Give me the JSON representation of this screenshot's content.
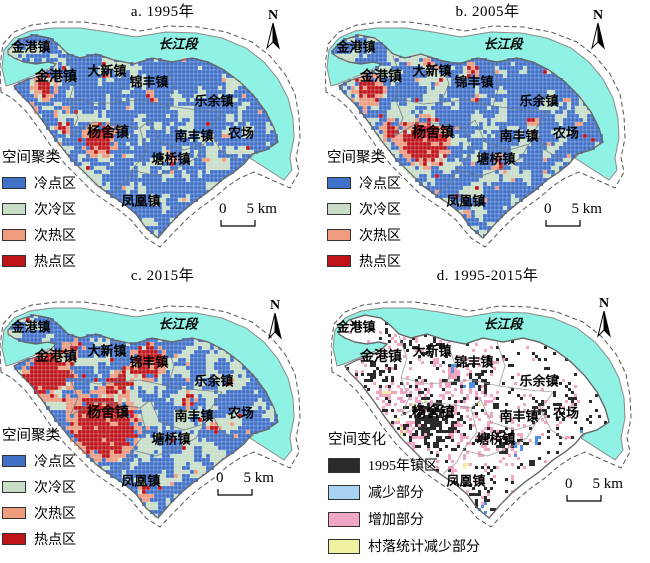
{
  "figure": {
    "panels": [
      {
        "title": "a. 1995年",
        "year": "1995",
        "legend": "cluster"
      },
      {
        "title": "b. 2005年",
        "year": "2005",
        "legend": "cluster"
      },
      {
        "title": "c. 2015年",
        "year": "2015",
        "legend": "cluster"
      },
      {
        "title": "d. 1995-2015年",
        "year": "1995-2015",
        "legend": "change"
      }
    ],
    "north_label": "N",
    "scale_bar": {
      "zero": "0",
      "label": "5 km"
    },
    "river_label": "长江段",
    "town_labels": [
      "金港镇",
      "金港镇",
      "大新镇",
      "锦丰镇",
      "乐余镇",
      "杨舍镇",
      "南丰镇",
      "农场",
      "塘桥镇",
      "凤凰镇"
    ],
    "cluster_legend": {
      "title": "空间聚类",
      "items": [
        {
          "label": "冷点区",
          "color": "#4070C8"
        },
        {
          "label": "次冷区",
          "color": "#C9DEC6"
        },
        {
          "label": "次热区",
          "color": "#EF9B7D"
        },
        {
          "label": "热点区",
          "color": "#C01318"
        }
      ]
    },
    "change_legend": {
      "title": "空间变化",
      "items": [
        {
          "label": "1995年镇区",
          "color": "#2B2B2B",
          "pattern": "solid"
        },
        {
          "label": "减少部分",
          "color": "#A9D3F2",
          "pattern": "dots",
          "dot_color": "#2F6FD6"
        },
        {
          "label": "增加部分",
          "color": "#F2A6C6",
          "pattern": "solid"
        },
        {
          "label": "村落统计减少部分",
          "color": "#F0F2A2",
          "pattern": "solid"
        }
      ]
    },
    "map_colors": {
      "river": "#8FF2E4",
      "cold": "#4070C8",
      "subcold": "#C9DEC6",
      "subhot": "#EF9B7D",
      "hot": "#C01318",
      "town_1995": "#2B2B2B",
      "decrease": "#4D8FE8",
      "increase": "#F2A6C6",
      "village_decrease": "#F0F2A2",
      "land_white": "#FFFFFF",
      "outline": "#666666",
      "dash_boundary": "#555555"
    }
  }
}
